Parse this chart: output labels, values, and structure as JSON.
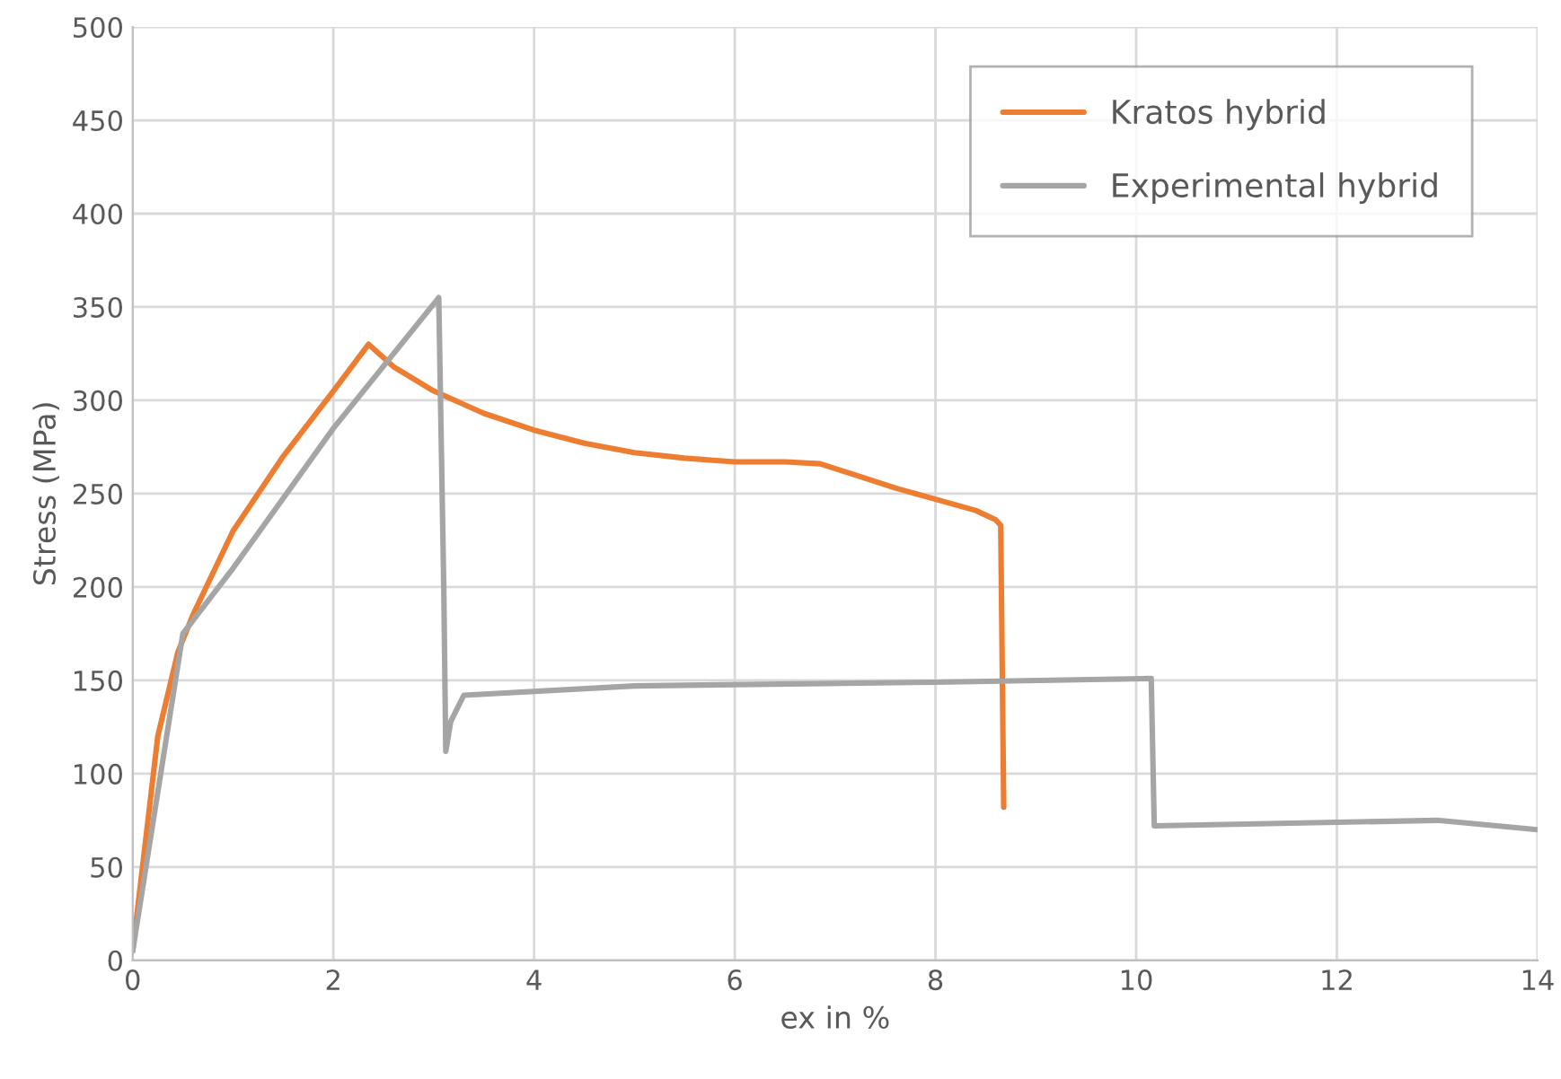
{
  "chart_data": {
    "type": "line",
    "xlabel": "ex in %",
    "ylabel": "Stress (MPa)",
    "xlim": [
      0,
      14
    ],
    "xticks": [
      0,
      2,
      4,
      6,
      8,
      10,
      12,
      14
    ],
    "ylim": [
      0,
      500
    ],
    "yticks": [
      0,
      50,
      100,
      150,
      200,
      250,
      300,
      350,
      400,
      450,
      500
    ],
    "grid": true,
    "legend": "top right",
    "marker": "none",
    "line_style": "solid",
    "series": [
      {
        "name": "Kratos hybrid",
        "color": "#ed7d31",
        "x": [
          0,
          0.25,
          0.45,
          0.6,
          1,
          1.5,
          2,
          2.35,
          2.6,
          3,
          3.5,
          4,
          4.5,
          5,
          5.5,
          6,
          6.5,
          6.85,
          7.2,
          7.6,
          8,
          8.4,
          8.6,
          8.65,
          8.68
        ],
        "values": [
          5,
          120,
          165,
          185,
          230,
          270,
          305,
          330,
          318,
          305,
          293,
          284,
          277,
          272,
          269,
          267,
          267,
          266,
          260,
          253,
          247,
          241,
          236,
          233,
          82
        ]
      },
      {
        "name": "Experimental hybrid",
        "color": "#a5a5a5",
        "x": [
          0,
          0.5,
          1,
          2,
          3.05,
          3.1,
          3.12,
          3.17,
          3.3,
          5,
          8,
          10.15,
          10.18,
          13,
          14
        ],
        "values": [
          5,
          175,
          210,
          285,
          355,
          200,
          112,
          128,
          142,
          147,
          149,
          151,
          72,
          75,
          70
        ]
      }
    ]
  }
}
